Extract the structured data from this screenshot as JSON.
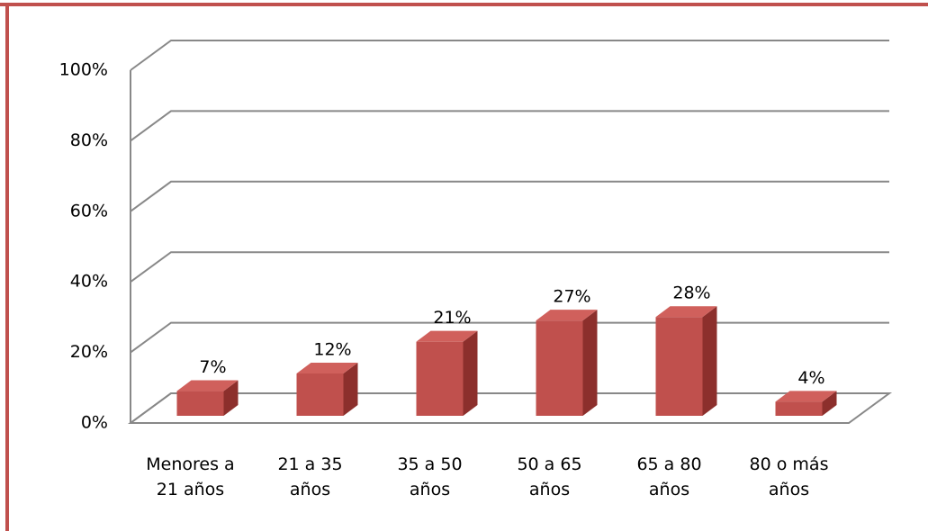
{
  "chart_data": {
    "type": "bar3d",
    "categories": [
      "Menores a\n21 años",
      "21 a 35\naños",
      "35 a 50\naños",
      "50 a 65\naños",
      "65 a 80\naños",
      "80 o más\naños"
    ],
    "values": [
      7,
      12,
      21,
      27,
      28,
      4
    ],
    "value_labels": [
      "7%",
      "12%",
      "21%",
      "27%",
      "28%",
      "4%"
    ],
    "color": "#c0504d",
    "ylim": [
      0,
      100
    ],
    "yticks": [
      {
        "value": 0,
        "label": "0%"
      },
      {
        "value": 20,
        "label": "20%"
      },
      {
        "value": 40,
        "label": "40%"
      },
      {
        "value": 60,
        "label": "60%"
      },
      {
        "value": 80,
        "label": "80%"
      },
      {
        "value": 100,
        "label": "100%"
      }
    ],
    "grid": true
  }
}
